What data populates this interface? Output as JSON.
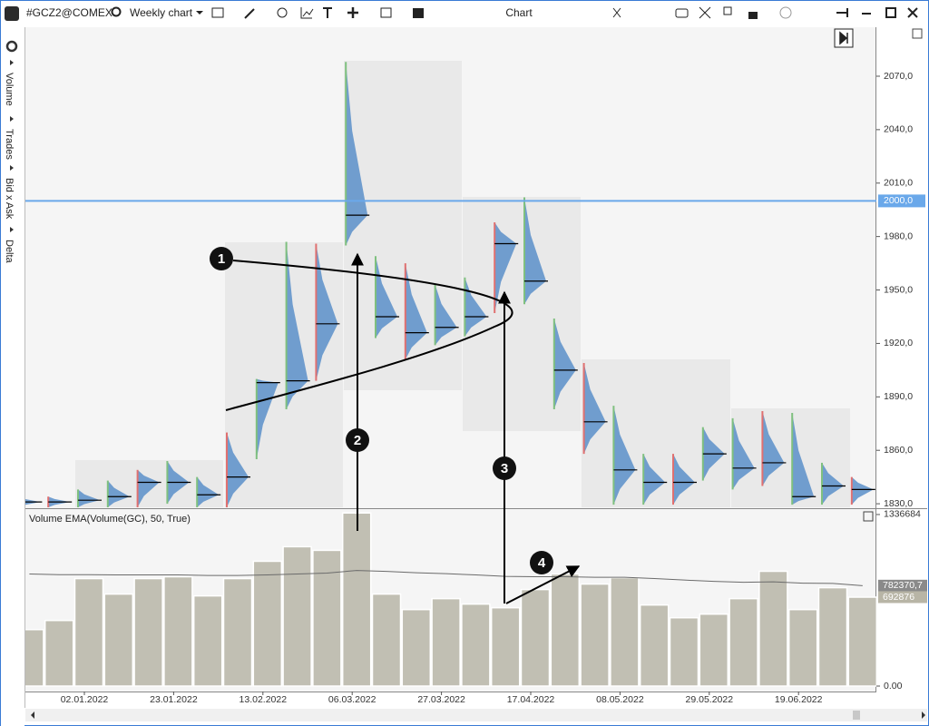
{
  "toolbar": {
    "symbol": "#GCZ2@COMEX",
    "timeframe": "Weekly chart",
    "title": "Chart"
  },
  "side_panel": {
    "items": [
      "Volume",
      "Trades",
      "Bid x Ask",
      "Delta"
    ]
  },
  "chart_data": [
    {
      "type": "volume_profile",
      "high": [
        1834,
        1834,
        1838,
        1843,
        1849,
        1854,
        1845,
        1870,
        1900,
        1977,
        1976,
        2078,
        1969,
        1965,
        1953,
        1957,
        1988,
        2002,
        1934,
        1909,
        1885,
        1858,
        1858,
        1873,
        1878,
        1882,
        1881,
        1853,
        1845
      ],
      "low": [
        1828,
        1828,
        1828,
        1828,
        1828,
        1830,
        1828,
        1828,
        1855,
        1883,
        1899,
        1975,
        1923,
        1911,
        1919,
        1924,
        1937,
        1942,
        1883,
        1858,
        1829.5,
        1829.5,
        1829.5,
        1843,
        1838,
        1840,
        1829.5,
        1829.5,
        1829.5
      ],
      "poc": [
        1831,
        1831,
        1832,
        1834,
        1842,
        1842,
        1835,
        1845,
        1898,
        1899,
        1931,
        1992,
        1935,
        1926,
        1929,
        1935,
        1976,
        1955,
        1905,
        1876,
        1849,
        1842,
        1842,
        1858,
        1850,
        1853,
        1834,
        1840,
        1838
      ],
      "color": "#5b8fc9",
      "ylim": [
        1827.5,
        2097.5
      ],
      "yticks": [
        {
          "value": 1830,
          "label": "1830,0"
        },
        {
          "value": 1860,
          "label": "1860,0"
        },
        {
          "value": 1890,
          "label": "1890,0"
        },
        {
          "value": 1920,
          "label": "1920,0"
        },
        {
          "value": 1950,
          "label": "1950,0"
        },
        {
          "value": 1980,
          "label": "1980,0"
        },
        {
          "value": 2010,
          "label": "2010,0"
        },
        {
          "value": 2040,
          "label": "2040,0"
        },
        {
          "value": 2070,
          "label": "2070,0"
        }
      ],
      "price_line": {
        "value": 2000,
        "label": "2000,0",
        "color": "#6aa8ea"
      },
      "annotations": [
        "1",
        "2",
        "3",
        "4"
      ]
    },
    {
      "type": "bar",
      "title": "Volume EMA(Volume(GC), 50, True)",
      "categories": [
        null,
        null,
        "02.01.2022",
        null,
        null,
        "23.01.2022",
        null,
        null,
        "13.02.2022",
        null,
        null,
        "06.03.2022",
        null,
        null,
        "27.03.2022",
        null,
        null,
        "17.04.2022",
        null,
        null,
        "08.05.2022",
        null,
        null,
        "29.05.2022",
        null,
        null,
        "19.06.2022",
        null,
        null
      ],
      "series": [
        {
          "color": "#c1bfb3",
          "values": [
            440100,
            511100,
            837600,
            716900,
            837600,
            851800,
            702700,
            837600,
            972400,
            1086000,
            1057600,
            1348600,
            716900,
            596200,
            681400,
            638800,
            610400,
            752400,
            873100,
            795000,
            844700,
            631700,
            532400,
            560700,
            681400,
            894300,
            596200,
            766600,
            692876
          ]
        },
        {
          "color": "#6b6b6b",
          "values": [
            873000,
            868000,
            868000,
            866000,
            866000,
            866000,
            862000,
            862000,
            866000,
            873000,
            880000,
            901000,
            894000,
            883000,
            876000,
            866000,
            855000,
            852000,
            852000,
            848000,
            848000,
            838000,
            826000,
            816000,
            809000,
            812000,
            802000,
            800000,
            782370.7
          ],
          "value_labels": [
            null,
            null,
            null,
            null,
            null,
            null,
            null,
            null,
            null,
            null,
            null,
            null,
            null,
            null,
            null,
            null,
            null,
            null,
            null,
            null,
            null,
            null,
            null,
            null,
            null,
            null,
            null,
            null,
            "782370,7"
          ]
        }
      ],
      "ylim": [
        0,
        1364700
      ],
      "yticks": [
        {
          "value": 0,
          "label": "0.00"
        },
        {
          "value": 1336684,
          "label": "1336684"
        }
      ]
    }
  ]
}
